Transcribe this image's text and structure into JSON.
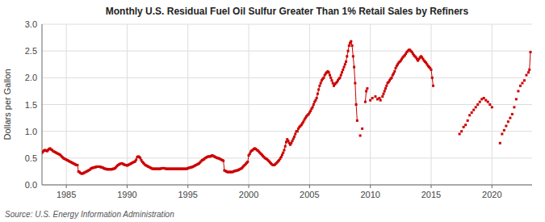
{
  "chart_data": {
    "type": "line",
    "title": "Monthly U.S. Residual Fuel Oil Sulfur Greater Than 1% Retail Sales by Refiners",
    "ylabel": "Dollars per Gallon",
    "source": "Source: U.S. Energy Information Administration",
    "color": "#cc0000",
    "marker": "square",
    "line_style": "solid",
    "grid": true,
    "xlim": [
      1983.0,
      2023.3
    ],
    "xticks": [
      1985,
      1990,
      1995,
      2000,
      2005,
      2010,
      2015,
      2020
    ],
    "ylim": [
      0.0,
      3.0
    ],
    "yticks": [
      {
        "value": 0.0,
        "label": "0.0"
      },
      0.5,
      {
        "value": 1.0,
        "label": "1.0"
      },
      1.5,
      {
        "value": 2.0,
        "label": "2.0"
      },
      2.5,
      {
        "value": 3.0,
        "label": "3.0"
      }
    ],
    "x": [
      1983,
      1983.0833333333,
      1983.1666666667,
      1983.25,
      1983.3333333333,
      1983.4166666667,
      1983.5,
      1983.5833333333,
      1983.6666666667,
      1983.75,
      1983.8333333333,
      1983.9166666667,
      1984,
      1984.0833333333,
      1984.1666666667,
      1984.25,
      1984.3333333333,
      1984.4166666667,
      1984.5,
      1984.5833333333,
      1984.6666666667,
      1984.75,
      1984.8333333333,
      1984.9166666667,
      1985,
      1985.0833333333,
      1985.1666666667,
      1985.25,
      1985.3333333333,
      1985.4166666667,
      1985.5,
      1985.5833333333,
      1985.6666666667,
      1985.75,
      1985.8333333333,
      1985.9166666667,
      1986,
      1986.0833333333,
      1986.1666666667,
      1986.25,
      1986.3333333333,
      1986.4166666667,
      1986.5,
      1986.5833333333,
      1986.6666666667,
      1986.75,
      1986.8333333333,
      1986.9166666667,
      1987,
      1987.0833333333,
      1987.1666666667,
      1987.25,
      1987.3333333333,
      1987.4166666667,
      1987.5,
      1987.5833333333,
      1987.6666666667,
      1987.75,
      1987.8333333333,
      1987.9166666667,
      1988,
      1988.0833333333,
      1988.1666666667,
      1988.25,
      1988.3333333333,
      1988.4166666667,
      1988.5,
      1988.5833333333,
      1988.6666666667,
      1988.75,
      1988.8333333333,
      1988.9166666667,
      1989,
      1989.0833333333,
      1989.1666666667,
      1989.25,
      1989.3333333333,
      1989.4166666667,
      1989.5,
      1989.5833333333,
      1989.6666666667,
      1989.75,
      1989.8333333333,
      1989.9166666667,
      1990,
      1990.0833333333,
      1990.1666666667,
      1990.25,
      1990.3333333333,
      1990.4166666667,
      1990.5,
      1990.5833333333,
      1990.6666666667,
      1990.75,
      1990.8333333333,
      1990.9166666667,
      1991,
      1991.0833333333,
      1991.1666666667,
      1991.25,
      1991.3333333333,
      1991.4166666667,
      1991.5,
      1991.5833333333,
      1991.6666666667,
      1991.75,
      1991.8333333333,
      1991.9166666667,
      1992,
      1992.0833333333,
      1992.1666666667,
      1992.25,
      1992.3333333333,
      1992.4166666667,
      1992.5,
      1992.5833333333,
      1992.6666666667,
      1992.75,
      1992.8333333333,
      1992.9166666667,
      1993,
      1993.0833333333,
      1993.1666666667,
      1993.25,
      1993.3333333333,
      1993.4166666667,
      1993.5,
      1993.5833333333,
      1993.6666666667,
      1993.75,
      1993.8333333333,
      1993.9166666667,
      1994,
      1994.0833333333,
      1994.1666666667,
      1994.25,
      1994.3333333333,
      1994.4166666667,
      1994.5,
      1994.5833333333,
      1994.6666666667,
      1994.75,
      1994.8333333333,
      1994.9166666667,
      1995,
      1995.0833333333,
      1995.1666666667,
      1995.25,
      1995.3333333333,
      1995.4166666667,
      1995.5,
      1995.5833333333,
      1995.6666666667,
      1995.75,
      1995.8333333333,
      1995.9166666667,
      1996,
      1996.0833333333,
      1996.1666666667,
      1996.25,
      1996.3333333333,
      1996.4166666667,
      1996.5,
      1996.5833333333,
      1996.6666666667,
      1996.75,
      1996.8333333333,
      1996.9166666667,
      1997,
      1997.0833333333,
      1997.1666666667,
      1997.25,
      1997.3333333333,
      1997.4166666667,
      1997.5,
      1997.5833333333,
      1997.6666666667,
      1997.75,
      1997.8333333333,
      1997.9166666667,
      1998,
      1998.0833333333,
      1998.1666666667,
      1998.25,
      1998.3333333333,
      1998.4166666667,
      1998.5,
      1998.5833333333,
      1998.6666666667,
      1998.75,
      1998.8333333333,
      1998.9166666667,
      1999,
      1999.0833333333,
      1999.1666666667,
      1999.25,
      1999.3333333333,
      1999.4166666667,
      1999.5,
      1999.5833333333,
      1999.6666666667,
      1999.75,
      1999.8333333333,
      1999.9166666667,
      2000,
      2000.0833333333,
      2000.1666666667,
      2000.25,
      2000.3333333333,
      2000.4166666667,
      2000.5,
      2000.5833333333,
      2000.6666666667,
      2000.75,
      2000.8333333333,
      2000.9166666667,
      2001,
      2001.0833333333,
      2001.1666666667,
      2001.25,
      2001.3333333333,
      2001.4166666667,
      2001.5,
      2001.5833333333,
      2001.6666666667,
      2001.75,
      2001.8333333333,
      2001.9166666667,
      2002,
      2002.0833333333,
      2002.1666666667,
      2002.25,
      2002.3333333333,
      2002.4166666667,
      2002.5,
      2002.5833333333,
      2002.6666666667,
      2002.75,
      2002.8333333333,
      2002.9166666667,
      2003,
      2003.0833333333,
      2003.1666666667,
      2003.25,
      2003.3333333333,
      2003.4166666667,
      2003.5,
      2003.5833333333,
      2003.6666666667,
      2003.75,
      2003.8333333333,
      2003.9166666667,
      2004,
      2004.0833333333,
      2004.1666666667,
      2004.25,
      2004.3333333333,
      2004.4166666667,
      2004.5,
      2004.5833333333,
      2004.6666666667,
      2004.75,
      2004.8333333333,
      2004.9166666667,
      2005,
      2005.0833333333,
      2005.1666666667,
      2005.25,
      2005.3333333333,
      2005.4166666667,
      2005.5,
      2005.5833333333,
      2005.6666666667,
      2005.75,
      2005.8333333333,
      2005.9166666667,
      2006,
      2006.0833333333,
      2006.1666666667,
      2006.25,
      2006.3333333333,
      2006.4166666667,
      2006.5,
      2006.5833333333,
      2006.6666666667,
      2006.75,
      2006.8333333333,
      2006.9166666667,
      2007,
      2007.0833333333,
      2007.1666666667,
      2007.25,
      2007.3333333333,
      2007.4166666667,
      2007.5,
      2007.5833333333,
      2007.6666666667,
      2007.75,
      2007.8333333333,
      2007.9166666667,
      2008,
      2008.0833333333,
      2008.1666666667,
      2008.25,
      2008.3333333333,
      2008.4166666667,
      2008.5,
      2008.5833333333,
      2008.6666666667,
      2008.75,
      2008.8333333333,
      2008.9166666667,
      2009,
      2009.0833333333,
      2009.1666666667,
      2009.25,
      2009.3333333333,
      2009.4166666667,
      2009.5,
      2009.5833333333,
      2009.6666666667,
      2009.75,
      2009.8333333333,
      2009.9166666667,
      2010,
      2010.0833333333,
      2010.1666666667,
      2010.25,
      2010.3333333333,
      2010.4166666667,
      2010.5,
      2010.5833333333,
      2010.6666666667,
      2010.75,
      2010.8333333333,
      2010.9166666667,
      2011,
      2011.0833333333,
      2011.1666666667,
      2011.25,
      2011.3333333333,
      2011.4166666667,
      2011.5,
      2011.5833333333,
      2011.6666666667,
      2011.75,
      2011.8333333333,
      2011.9166666667,
      2012,
      2012.0833333333,
      2012.1666666667,
      2012.25,
      2012.3333333333,
      2012.4166666667,
      2012.5,
      2012.5833333333,
      2012.6666666667,
      2012.75,
      2012.8333333333,
      2012.9166666667,
      2013,
      2013.0833333333,
      2013.1666666667,
      2013.25,
      2013.3333333333,
      2013.4166666667,
      2013.5,
      2013.5833333333,
      2013.6666666667,
      2013.75,
      2013.8333333333,
      2013.9166666667,
      2014,
      2014.0833333333,
      2014.1666666667,
      2014.25,
      2014.3333333333,
      2014.4166666667,
      2014.5,
      2014.5833333333,
      2014.6666666667,
      2014.75,
      2014.8333333333,
      2014.9166666667,
      2015,
      2015.0833333333,
      2015.1666666667,
      2015.25,
      2015.3333333333,
      2015.4166666667,
      2015.5,
      2015.5833333333,
      2015.6666666667,
      2015.75,
      2015.8333333333,
      2015.9166666667,
      2016,
      2016.0833333333,
      2016.1666666667,
      2016.25,
      2016.3333333333,
      2016.4166666667,
      2016.5,
      2016.5833333333,
      2016.6666666667,
      2016.75,
      2016.8333333333,
      2016.9166666667,
      2017,
      2017.0833333333,
      2017.1666666667,
      2017.25,
      2017.3333333333,
      2017.4166666667,
      2017.5,
      2017.5833333333,
      2017.6666666667,
      2017.75,
      2017.8333333333,
      2017.9166666667,
      2018,
      2018.0833333333,
      2018.1666666667,
      2018.25,
      2018.3333333333,
      2018.4166666667,
      2018.5,
      2018.5833333333,
      2018.6666666667,
      2018.75,
      2018.8333333333,
      2018.9166666667,
      2019,
      2019.0833333333,
      2019.1666666667,
      2019.25,
      2019.3333333333,
      2019.4166666667,
      2019.5,
      2019.5833333333,
      2019.6666666667,
      2019.75,
      2019.8333333333,
      2019.9166666667,
      2020,
      2020.0833333333,
      2020.1666666667,
      2020.25,
      2020.3333333333,
      2020.4166666667,
      2020.5,
      2020.5833333333,
      2020.6666666667,
      2020.75,
      2020.8333333333,
      2020.9166666667,
      2021,
      2021.0833333333,
      2021.1666666667,
      2021.25,
      2021.3333333333,
      2021.4166666667,
      2021.5,
      2021.5833333333,
      2021.6666666667,
      2021.75,
      2021.8333333333,
      2021.9166666667,
      2022,
      2022.0833333333,
      2022.1666666667,
      2022.25,
      2022.3333333333,
      2022.4166666667,
      2022.5,
      2022.5833333333,
      2022.6666666667,
      2022.75,
      2022.8333333333,
      2022.9166666667,
      2023,
      2023.0833333333,
      2023.1666666667
    ],
    "values": [
      0.6,
      0.62,
      0.64,
      0.65,
      0.64,
      0.63,
      0.65,
      0.67,
      0.68,
      0.66,
      0.65,
      0.63,
      0.62,
      0.61,
      0.6,
      0.59,
      0.58,
      0.57,
      0.56,
      0.54,
      0.52,
      0.5,
      0.49,
      0.48,
      0.47,
      0.46,
      0.45,
      0.44,
      0.43,
      0.42,
      0.41,
      0.4,
      0.39,
      0.38,
      0.37,
      0.37,
      0.25,
      0.24,
      0.22,
      0.21,
      0.21,
      0.22,
      0.23,
      0.24,
      0.25,
      0.26,
      0.27,
      0.28,
      0.3,
      0.31,
      0.32,
      0.32,
      0.33,
      0.33,
      0.34,
      0.34,
      0.34,
      0.34,
      0.33,
      0.33,
      0.32,
      0.31,
      0.3,
      0.3,
      0.29,
      0.29,
      0.29,
      0.29,
      0.29,
      0.29,
      0.3,
      0.3,
      0.31,
      0.33,
      0.35,
      0.37,
      0.38,
      0.39,
      0.4,
      0.4,
      0.39,
      0.38,
      0.37,
      0.37,
      0.36,
      0.37,
      0.38,
      0.39,
      0.4,
      0.41,
      0.42,
      0.43,
      0.44,
      0.47,
      0.52,
      0.53,
      0.52,
      0.5,
      0.46,
      0.43,
      0.41,
      0.39,
      0.37,
      0.36,
      0.35,
      0.34,
      0.33,
      0.32,
      0.31,
      0.3,
      0.3,
      0.3,
      0.3,
      0.3,
      0.3,
      0.3,
      0.3,
      0.3,
      0.31,
      0.31,
      0.31,
      0.31,
      0.3,
      0.3,
      0.3,
      0.3,
      0.3,
      0.3,
      0.3,
      0.3,
      0.3,
      0.3,
      0.3,
      0.3,
      0.3,
      0.3,
      0.3,
      0.3,
      0.3,
      0.3,
      0.3,
      0.3,
      0.3,
      0.3,
      0.31,
      0.32,
      0.32,
      0.33,
      0.33,
      0.34,
      0.35,
      0.36,
      0.37,
      0.38,
      0.39,
      0.4,
      0.42,
      0.44,
      0.46,
      0.47,
      0.48,
      0.5,
      0.51,
      0.52,
      0.53,
      0.53,
      0.53,
      0.54,
      0.55,
      0.54,
      0.53,
      0.52,
      0.51,
      0.5,
      0.5,
      0.49,
      0.48,
      0.47,
      0.46,
      0.45,
      0.27,
      0.26,
      0.25,
      0.24,
      0.24,
      0.24,
      0.24,
      0.24,
      0.24,
      0.25,
      0.26,
      0.26,
      0.27,
      0.27,
      0.28,
      0.29,
      0.3,
      0.31,
      0.33,
      0.35,
      0.37,
      0.39,
      0.41,
      0.43,
      0.55,
      0.58,
      0.62,
      0.64,
      0.65,
      0.67,
      0.68,
      0.67,
      0.65,
      0.64,
      0.62,
      0.6,
      0.58,
      0.56,
      0.54,
      0.52,
      0.5,
      0.49,
      0.48,
      0.46,
      0.44,
      0.42,
      0.4,
      0.38,
      0.37,
      0.37,
      0.38,
      0.4,
      0.42,
      0.44,
      0.46,
      0.49,
      0.52,
      0.56,
      0.6,
      0.65,
      0.72,
      0.8,
      0.85,
      0.82,
      0.78,
      0.75,
      0.78,
      0.82,
      0.86,
      0.9,
      0.95,
      1.0,
      1.0,
      1.05,
      1.08,
      1.1,
      1.12,
      1.15,
      1.18,
      1.22,
      1.25,
      1.28,
      1.3,
      1.32,
      1.35,
      1.38,
      1.42,
      1.45,
      1.5,
      1.55,
      1.58,
      1.62,
      1.7,
      1.78,
      1.85,
      1.9,
      1.95,
      1.98,
      2.0,
      2.05,
      2.08,
      2.1,
      2.12,
      2.1,
      2.05,
      2.0,
      1.95,
      1.9,
      1.85,
      1.88,
      1.9,
      1.92,
      1.95,
      1.98,
      2.0,
      2.05,
      2.1,
      2.15,
      2.2,
      2.25,
      2.3,
      2.4,
      2.5,
      2.6,
      2.65,
      2.68,
      2.6,
      2.4,
      2.2,
      1.9,
      1.5,
      1.2,
      null,
      null,
      0.92,
      null,
      1.05,
      null,
      null,
      1.55,
      1.75,
      1.8,
      null,
      null,
      1.58,
      null,
      1.62,
      null,
      null,
      1.65,
      null,
      1.6,
      null,
      1.62,
      1.58,
      null,
      1.65,
      1.7,
      1.75,
      1.8,
      1.85,
      1.9,
      1.92,
      1.95,
      1.98,
      2.0,
      2.05,
      2.08,
      2.12,
      2.18,
      2.22,
      2.25,
      2.28,
      2.3,
      2.32,
      2.35,
      2.38,
      2.4,
      2.42,
      2.45,
      2.48,
      2.5,
      2.52,
      2.52,
      2.5,
      2.48,
      2.45,
      2.42,
      2.4,
      2.38,
      2.35,
      2.32,
      2.35,
      2.38,
      2.4,
      2.38,
      2.35,
      2.32,
      2.3,
      2.28,
      2.25,
      2.22,
      2.2,
      2.18,
      2.15,
      2.0,
      1.85,
      null,
      null,
      null,
      null,
      null,
      null,
      null,
      null,
      null,
      null,
      null,
      null,
      null,
      null,
      null,
      null,
      null,
      null,
      null,
      null,
      null,
      null,
      null,
      null,
      null,
      0.95,
      null,
      1.0,
      null,
      1.08,
      null,
      1.12,
      null,
      1.2,
      null,
      1.3,
      null,
      1.35,
      null,
      1.4,
      null,
      1.45,
      null,
      1.5,
      null,
      1.55,
      null,
      1.6,
      null,
      1.62,
      null,
      1.58,
      null,
      1.55,
      null,
      1.5,
      null,
      1.45,
      null,
      null,
      null,
      null,
      null,
      null,
      null,
      0.78,
      null,
      0.95,
      null,
      1.02,
      null,
      1.1,
      null,
      1.18,
      null,
      1.25,
      null,
      1.32,
      null,
      1.45,
      null,
      1.6,
      null,
      1.75,
      null,
      1.85,
      null,
      1.9,
      null,
      1.95,
      null,
      2.05,
      null,
      2.1,
      2.15,
      2.48
    ]
  }
}
